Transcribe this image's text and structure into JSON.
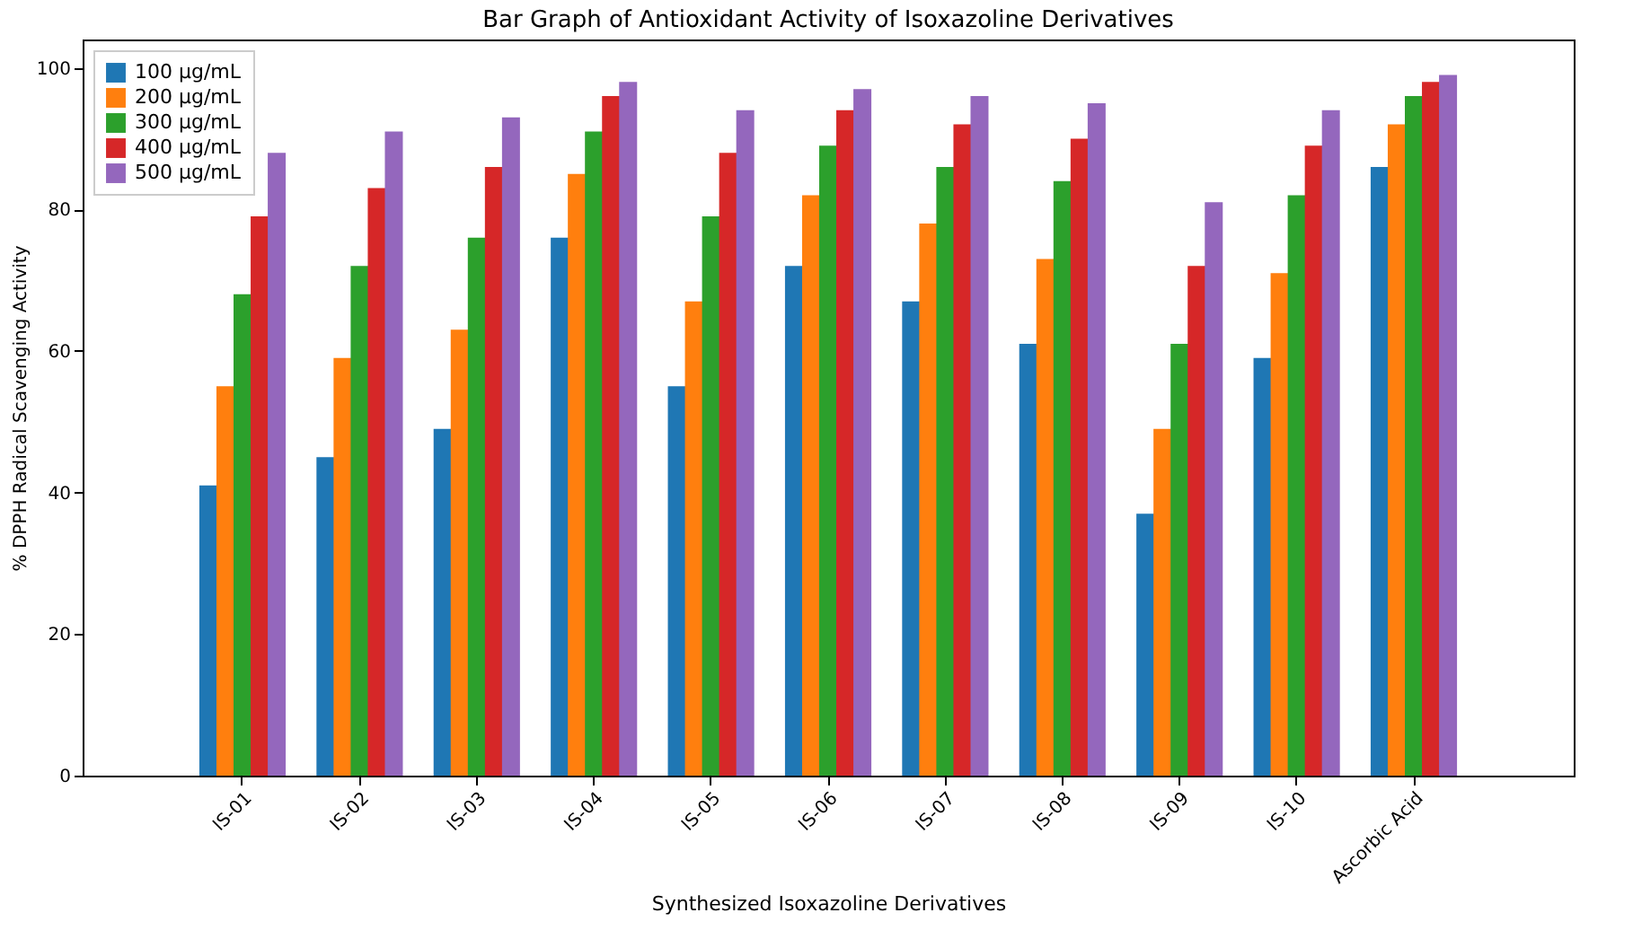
{
  "chart_data": {
    "type": "bar",
    "title": "Bar Graph of Antioxidant Activity of Isoxazoline Derivatives",
    "xlabel": "Synthesized Isoxazoline Derivatives",
    "ylabel": "% DPPH Radical Scavenging Activity",
    "categories": [
      "IS-01",
      "IS-02",
      "IS-03",
      "IS-04",
      "IS-05",
      "IS-06",
      "IS-07",
      "IS-08",
      "IS-09",
      "IS-10",
      "Ascorbic Acid"
    ],
    "series": [
      {
        "name": "100 µg/mL",
        "color": "#1f77b4",
        "values": [
          41,
          45,
          49,
          76,
          55,
          72,
          67,
          61,
          37,
          59,
          86
        ]
      },
      {
        "name": "200 µg/mL",
        "color": "#ff7f0e",
        "values": [
          55,
          59,
          63,
          85,
          67,
          82,
          78,
          73,
          49,
          71,
          92
        ]
      },
      {
        "name": "300 µg/mL",
        "color": "#2ca02c",
        "values": [
          68,
          72,
          76,
          91,
          79,
          89,
          86,
          84,
          61,
          82,
          96
        ]
      },
      {
        "name": "400 µg/mL",
        "color": "#d62728",
        "values": [
          79,
          83,
          86,
          96,
          88,
          94,
          92,
          90,
          72,
          89,
          98
        ]
      },
      {
        "name": "500 µg/mL",
        "color": "#9467bd",
        "values": [
          88,
          91,
          93,
          98,
          94,
          97,
          96,
          95,
          81,
          94,
          99
        ]
      }
    ],
    "ylim": [
      0,
      104
    ],
    "yticks": [
      0,
      20,
      40,
      60,
      80,
      100
    ],
    "grid": false,
    "legend": "top left"
  }
}
